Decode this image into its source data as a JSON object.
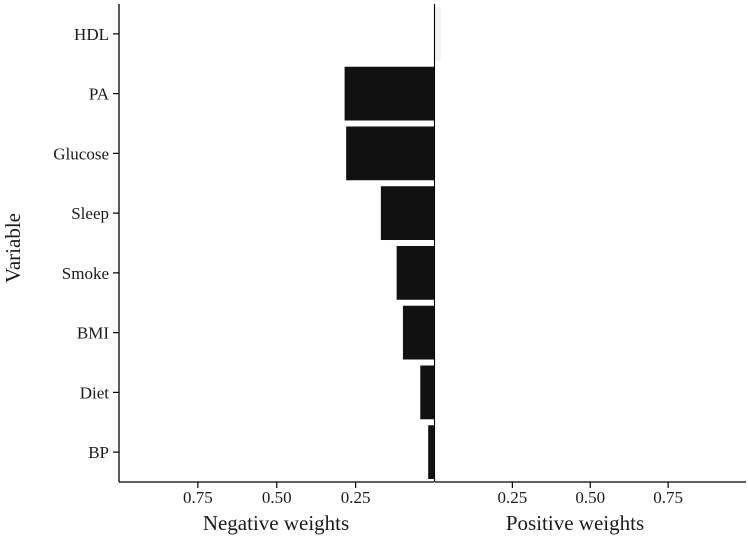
{
  "chart_data": {
    "type": "bar",
    "orientation": "horizontal",
    "ylabel": "Variable",
    "categories": [
      "HDL",
      "PA",
      "Glucose",
      "Sleep",
      "Smoke",
      "BMI",
      "Diet",
      "BP"
    ],
    "values": [
      0.02,
      -0.285,
      -0.28,
      -0.17,
      -0.12,
      -0.1,
      -0.045,
      -0.02
    ],
    "colors": {
      "negative": "#111111",
      "positive": "#f2f2f2"
    },
    "negative_panel": {
      "xlabel": "Negative weights",
      "xlim": [
        0,
        1.0
      ],
      "reversed": true,
      "ticks": [
        0.75,
        0.5,
        0.25
      ],
      "tick_labels": [
        "0.75",
        "0.50",
        "0.25"
      ]
    },
    "positive_panel": {
      "xlabel": "Positive weights",
      "xlim": [
        0,
        1.0
      ],
      "ticks": [
        0.25,
        0.5,
        0.75
      ],
      "tick_labels": [
        "0.25",
        "0.50",
        "0.75"
      ]
    },
    "grid": false,
    "legend": "none"
  }
}
